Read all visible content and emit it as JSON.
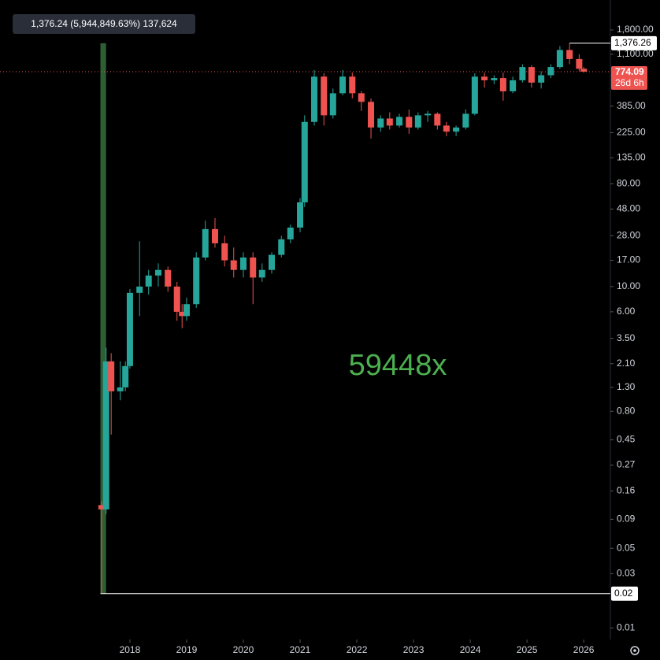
{
  "chart_data": {
    "type": "candlestick",
    "log_scale": true,
    "grid": false,
    "tooltip": "1,376.24 (5,944,849.63%) 137,624",
    "annotation": "59448x",
    "colors": {
      "up": "#26a69a",
      "down": "#ef5350",
      "annotation": "#4caf50",
      "measure": "#2e5e33"
    },
    "xlim": [
      2015.71,
      2026.47
    ],
    "xticks": [
      2018,
      2019,
      2020,
      2021,
      2022,
      2023,
      2024,
      2025,
      2026
    ],
    "ylim": [
      0.0079,
      3300
    ],
    "yticks": [
      {
        "value": 1800,
        "label": "1,800.00"
      },
      {
        "value": 1100,
        "label": "1,100.00"
      },
      {
        "value": 385,
        "label": "385.00"
      },
      {
        "value": 225,
        "label": "225.00"
      },
      {
        "value": 135,
        "label": "135.00"
      },
      {
        "value": 80,
        "label": "80.00"
      },
      {
        "value": 48,
        "label": "48.00"
      },
      {
        "value": 28,
        "label": "28.00"
      },
      {
        "value": 17,
        "label": "17.00"
      },
      {
        "value": 10,
        "label": "10.00"
      },
      {
        "value": 6,
        "label": "6.00"
      },
      {
        "value": 3.5,
        "label": "3.50"
      },
      {
        "value": 2.1,
        "label": "2.10"
      },
      {
        "value": 1.3,
        "label": "1.30"
      },
      {
        "value": 0.8,
        "label": "0.80"
      },
      0.45,
      0.27,
      0.16,
      0.09,
      0.05,
      0.03,
      0.01
    ],
    "measure": {
      "x": [
        2017.48,
        2017.58
      ],
      "low": 0.02,
      "high": {
        "value": 1376.26,
        "label": "1,376.26"
      }
    },
    "current_price": 774.09,
    "countdown": "26d 6h",
    "series": {
      "x": [
        2017.5,
        2017.58,
        2017.67,
        2017.83,
        2017.92,
        2018.0,
        2018.17,
        2018.33,
        2018.5,
        2018.67,
        2018.83,
        2018.92,
        2019.0,
        2019.17,
        2019.33,
        2019.5,
        2019.67,
        2019.83,
        2020.0,
        2020.17,
        2020.33,
        2020.5,
        2020.67,
        2020.83,
        2021.0,
        2021.08,
        2021.25,
        2021.42,
        2021.58,
        2021.75,
        2021.92,
        2022.08,
        2022.25,
        2022.42,
        2022.58,
        2022.75,
        2022.92,
        2023.08,
        2023.25,
        2023.42,
        2023.58,
        2023.75,
        2023.92,
        2024.08,
        2024.25,
        2024.42,
        2024.58,
        2024.75,
        2024.92,
        2025.08,
        2025.25,
        2025.42,
        2025.58,
        2025.75,
        2025.92,
        2026.0
      ],
      "open": [
        0.12,
        0.11,
        2.2,
        1.2,
        1.3,
        2.0,
        8.8,
        10,
        12.5,
        14,
        10,
        6,
        5.5,
        7,
        18,
        32,
        24,
        17,
        14,
        18,
        12,
        14,
        19,
        26,
        33,
        55,
        280,
        700,
        320,
        500,
        700,
        500,
        420,
        250,
        300,
        260,
        310,
        250,
        320,
        330,
        260,
        230,
        250,
        330,
        700,
        650,
        680,
        520,
        650,
        850,
        620,
        720,
        850,
        1200,
        1000,
        820
      ],
      "high": [
        0.13,
        2.9,
        2.6,
        2.2,
        2.2,
        9.5,
        25,
        14,
        16,
        15,
        11,
        7,
        8,
        20,
        38,
        40,
        28,
        22,
        20,
        20,
        16,
        20,
        28,
        35,
        60,
        320,
        800,
        750,
        550,
        800,
        760,
        520,
        450,
        320,
        340,
        330,
        360,
        340,
        350,
        340,
        280,
        260,
        360,
        750,
        760,
        720,
        760,
        700,
        900,
        880,
        780,
        900,
        1300,
        1376.26,
        1100,
        850
      ],
      "low": [
        0.02,
        0.1,
        0.5,
        1.0,
        1.2,
        1.9,
        5.5,
        8.5,
        10,
        9,
        5,
        4.3,
        5,
        6.5,
        17,
        22,
        15,
        12,
        12,
        7,
        11,
        13,
        18,
        24,
        30,
        50,
        260,
        260,
        300,
        480,
        450,
        350,
        200,
        230,
        240,
        250,
        220,
        240,
        280,
        240,
        210,
        210,
        240,
        320,
        560,
        600,
        430,
        500,
        620,
        560,
        550,
        680,
        820,
        900,
        780,
        760
      ],
      "close": [
        0.11,
        2.2,
        1.2,
        1.3,
        2.0,
        8.8,
        10,
        12.5,
        14,
        10,
        6,
        5.5,
        7,
        18,
        32,
        24,
        17,
        14,
        18,
        12,
        14,
        19,
        26,
        33,
        55,
        280,
        700,
        320,
        500,
        700,
        500,
        420,
        250,
        300,
        260,
        310,
        250,
        320,
        330,
        260,
        230,
        250,
        330,
        700,
        650,
        680,
        520,
        650,
        850,
        620,
        720,
        850,
        1200,
        1000,
        820,
        774.09
      ]
    }
  }
}
